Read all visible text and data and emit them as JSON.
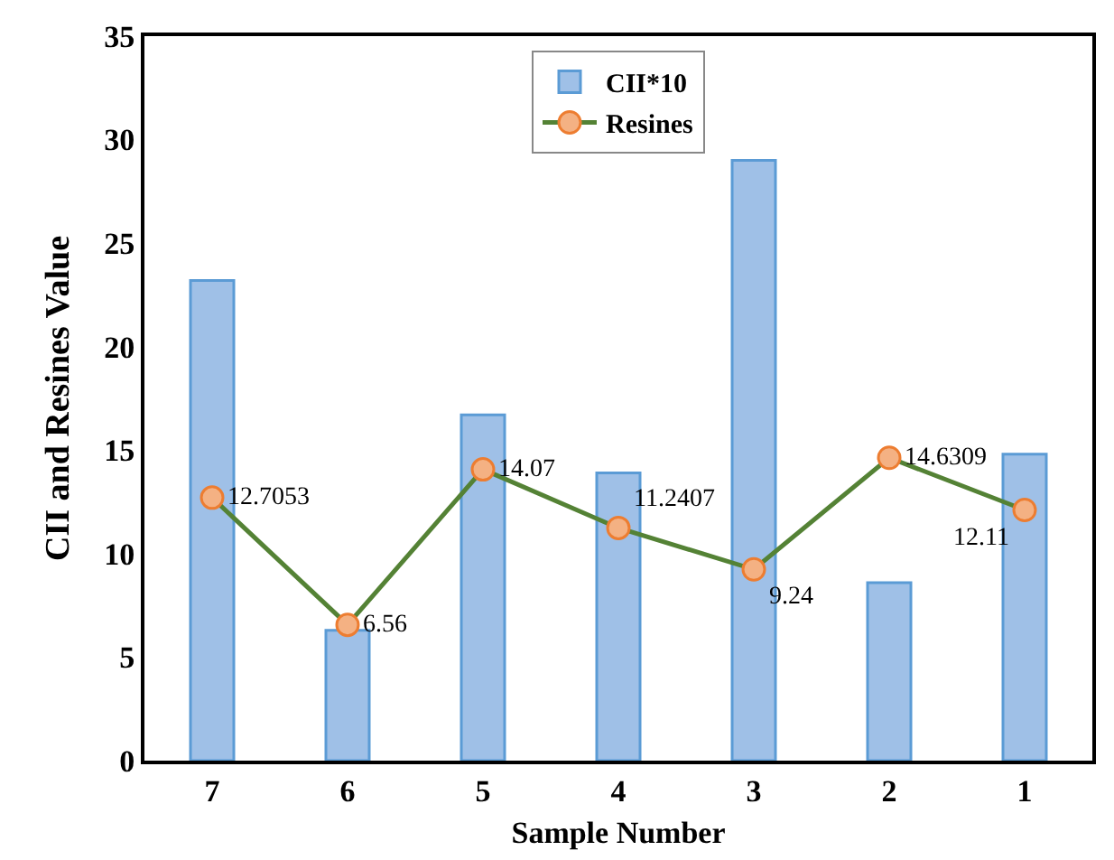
{
  "chart_data": {
    "type": "bar",
    "xlabel": "Sample Number",
    "ylabel": "CII and Resines Value",
    "categories": [
      "7",
      "6",
      "5",
      "4",
      "3",
      "2",
      "1"
    ],
    "series": [
      {
        "name": "CII*10",
        "color": "#9fc0e7",
        "values": [
          23.2,
          6.3,
          16.7,
          13.9,
          29.0,
          8.6,
          14.8
        ]
      },
      {
        "name": "Resines",
        "type": "line",
        "color": "#548235",
        "marker": "circle",
        "values": [
          12.7053,
          6.56,
          14.07,
          11.2407,
          9.24,
          14.6309,
          12.11
        ],
        "value_labels": [
          "12.7053",
          "6.56",
          "14.07",
          "11.2407",
          "9.24",
          "14.6309",
          "12.11"
        ]
      }
    ],
    "ylim": [
      0,
      35
    ],
    "yticks": [
      0,
      5,
      10,
      15,
      20,
      25,
      30,
      35
    ],
    "grid": false,
    "legend": "top"
  }
}
